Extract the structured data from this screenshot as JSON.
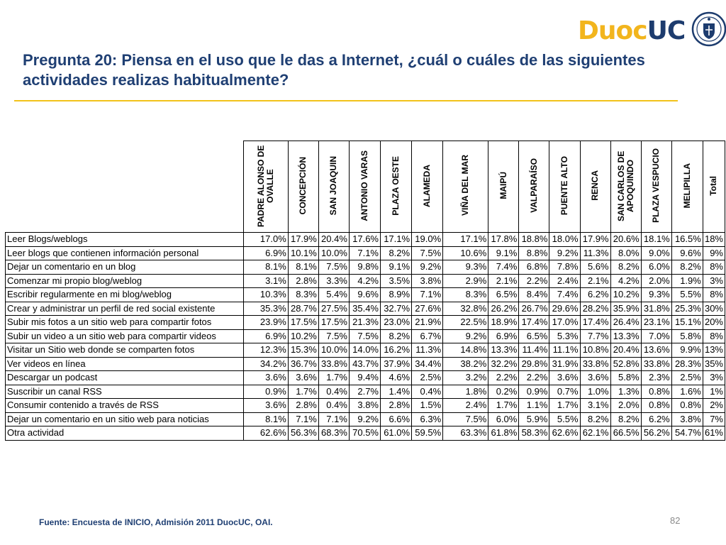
{
  "logo": {
    "part1": "Duoc",
    "part2": "UC",
    "brand_yellow": "#f2b51d",
    "brand_blue": "#1d3c6e",
    "seal_icon": "university-seal-icon"
  },
  "title": "Pregunta 20: Piensa en el uso que le das a Internet, ¿cuál o cuáles de las siguientes actividades realizas habitualmente?",
  "source": "Fuente: Encuesta de INICIO, Admisión 2011 DuocUC, OAI.",
  "page_number": "82",
  "chart_data": {
    "type": "table",
    "columns": [
      "PADRE ALONSO DE OVALLE",
      "CONCEPCIÓN",
      "SAN JOAQUIN",
      "ANTONIO VARAS",
      "PLAZA OESTE",
      "ALAMEDA",
      "VIÑA DEL MAR",
      "MAIPÚ",
      "VALPARAÍSO",
      "PUENTE ALTO",
      "RENCA",
      "SAN CARLOS DE APOQUINDO",
      "PLAZA VESPUCIO",
      "MELIPILLA",
      "Total"
    ],
    "rows": [
      {
        "label": "Leer Blogs/weblogs",
        "values": [
          "17.0%",
          "17.9%",
          "20.4%",
          "17.6%",
          "17.1%",
          "19.0%",
          "17.1%",
          "17.8%",
          "18.8%",
          "18.0%",
          "17.9%",
          "20.6%",
          "18.1%",
          "16.5%",
          "18%"
        ]
      },
      {
        "label": "Leer blogs que contienen información personal",
        "values": [
          "6.9%",
          "10.1%",
          "10.0%",
          "7.1%",
          "8.2%",
          "7.5%",
          "10.6%",
          "9.1%",
          "8.8%",
          "9.2%",
          "11.3%",
          "8.0%",
          "9.0%",
          "9.6%",
          "9%"
        ]
      },
      {
        "label": "Dejar un comentario en un blog",
        "values": [
          "8.1%",
          "8.1%",
          "7.5%",
          "9.8%",
          "9.1%",
          "9.2%",
          "9.3%",
          "7.4%",
          "6.8%",
          "7.8%",
          "5.6%",
          "8.2%",
          "6.0%",
          "8.2%",
          "8%"
        ]
      },
      {
        "label": "Comenzar mi propio blog/weblog",
        "values": [
          "3.1%",
          "2.8%",
          "3.3%",
          "4.2%",
          "3.5%",
          "3.8%",
          "2.9%",
          "2.1%",
          "2.2%",
          "2.4%",
          "2.1%",
          "4.2%",
          "2.0%",
          "1.9%",
          "3%"
        ]
      },
      {
        "label": "Escribir regularmente en mi blog/weblog",
        "values": [
          "10.3%",
          "8.3%",
          "5.4%",
          "9.6%",
          "8.9%",
          "7.1%",
          "8.3%",
          "6.5%",
          "8.4%",
          "7.4%",
          "6.2%",
          "10.2%",
          "9.3%",
          "5.5%",
          "8%"
        ]
      },
      {
        "label": "Crear y administrar un perfil de red social existente",
        "values": [
          "35.3%",
          "28.7%",
          "27.5%",
          "35.4%",
          "32.7%",
          "27.6%",
          "32.8%",
          "26.2%",
          "26.7%",
          "29.6%",
          "28.2%",
          "35.9%",
          "31.8%",
          "25.3%",
          "30%"
        ]
      },
      {
        "label": "Subir mis fotos a un sitio web para compartir fotos",
        "values": [
          "23.9%",
          "17.5%",
          "17.5%",
          "21.3%",
          "23.0%",
          "21.9%",
          "22.5%",
          "18.9%",
          "17.4%",
          "17.0%",
          "17.4%",
          "26.4%",
          "23.1%",
          "15.1%",
          "20%"
        ]
      },
      {
        "label": "Subir un video a un sitio web para compartir videos",
        "values": [
          "6.9%",
          "10.2%",
          "7.5%",
          "7.5%",
          "8.2%",
          "6.7%",
          "9.2%",
          "6.9%",
          "6.5%",
          "5.3%",
          "7.7%",
          "13.3%",
          "7.0%",
          "5.8%",
          "8%"
        ]
      },
      {
        "label": "Visitar un Sitio web donde se comparten fotos",
        "values": [
          "12.3%",
          "15.3%",
          "10.0%",
          "14.0%",
          "16.2%",
          "11.3%",
          "14.8%",
          "13.3%",
          "11.4%",
          "11.1%",
          "10.8%",
          "20.4%",
          "13.6%",
          "9.9%",
          "13%"
        ]
      },
      {
        "label": "Ver videos en línea",
        "values": [
          "34.2%",
          "36.7%",
          "33.8%",
          "43.7%",
          "37.9%",
          "34.4%",
          "38.2%",
          "32.2%",
          "29.8%",
          "31.9%",
          "33.8%",
          "52.8%",
          "33.8%",
          "28.3%",
          "35%"
        ]
      },
      {
        "label": "Descargar un  podcast",
        "values": [
          "3.6%",
          "3.6%",
          "1.7%",
          "9.4%",
          "4.6%",
          "2.5%",
          "3.2%",
          "2.2%",
          "2.2%",
          "3.6%",
          "3.6%",
          "5.8%",
          "2.3%",
          "2.5%",
          "3%"
        ]
      },
      {
        "label": "Suscribir un canal RSS",
        "values": [
          "0.9%",
          "1.7%",
          "0.4%",
          "2.7%",
          "1.4%",
          "0.4%",
          "1.8%",
          "0.2%",
          "0.9%",
          "0.7%",
          "1.0%",
          "1.3%",
          "0.8%",
          "1.6%",
          "1%"
        ]
      },
      {
        "label": "Consumir contenido a través de RSS",
        "values": [
          "3.6%",
          "2.8%",
          "0.4%",
          "3.8%",
          "2.8%",
          "1.5%",
          "2.4%",
          "1.7%",
          "1.1%",
          "1.7%",
          "3.1%",
          "2.0%",
          "0.8%",
          "0.8%",
          "2%"
        ]
      },
      {
        "label": "Dejar un comentario en un sitio web para noticias",
        "values": [
          "8.1%",
          "7.1%",
          "7.1%",
          "9.2%",
          "6.6%",
          "6.3%",
          "7.5%",
          "6.0%",
          "5.9%",
          "5.5%",
          "8.2%",
          "8.2%",
          "6.2%",
          "3.8%",
          "7%"
        ]
      },
      {
        "label": "Otra actividad",
        "values": [
          "62.6%",
          "56.3%",
          "68.3%",
          "70.5%",
          "61.0%",
          "59.5%",
          "63.3%",
          "61.8%",
          "58.3%",
          "62.6%",
          "62.1%",
          "66.5%",
          "56.2%",
          "54.7%",
          "61%"
        ]
      }
    ]
  }
}
